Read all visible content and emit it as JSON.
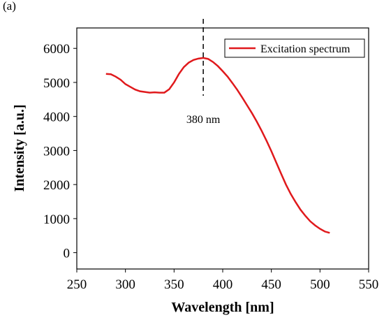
{
  "chart_data": {
    "type": "line",
    "panel_label": "(a)",
    "x_label": "Wavelength [nm]",
    "y_label": "Intensity [a.u.]",
    "x": [
      280,
      285,
      290,
      295,
      300,
      305,
      310,
      315,
      320,
      325,
      330,
      335,
      340,
      345,
      350,
      355,
      360,
      365,
      370,
      375,
      380,
      385,
      390,
      395,
      400,
      405,
      410,
      415,
      420,
      425,
      430,
      435,
      440,
      445,
      450,
      455,
      460,
      465,
      470,
      475,
      480,
      485,
      490,
      495,
      500,
      505,
      510
    ],
    "series": [
      {
        "name": "Excitation spectrum",
        "color": "#e0191c",
        "values": [
          5250,
          5240,
          5170,
          5080,
          4950,
          4870,
          4790,
          4740,
          4720,
          4700,
          4710,
          4700,
          4700,
          4800,
          5000,
          5250,
          5450,
          5580,
          5660,
          5700,
          5720,
          5690,
          5600,
          5480,
          5330,
          5170,
          4980,
          4780,
          4560,
          4330,
          4100,
          3850,
          3580,
          3290,
          2980,
          2650,
          2320,
          2000,
          1720,
          1480,
          1260,
          1080,
          920,
          800,
          700,
          620,
          580
        ]
      }
    ],
    "annotation": {
      "text": "380 nm",
      "x": 380
    },
    "xlim": [
      250,
      550
    ],
    "xticks": [
      250,
      300,
      350,
      400,
      450,
      500,
      550
    ],
    "ylim": [
      -480,
      6600
    ],
    "yticks": [
      0,
      1000,
      2000,
      3000,
      4000,
      5000,
      6000
    ],
    "legend": "upper right"
  }
}
